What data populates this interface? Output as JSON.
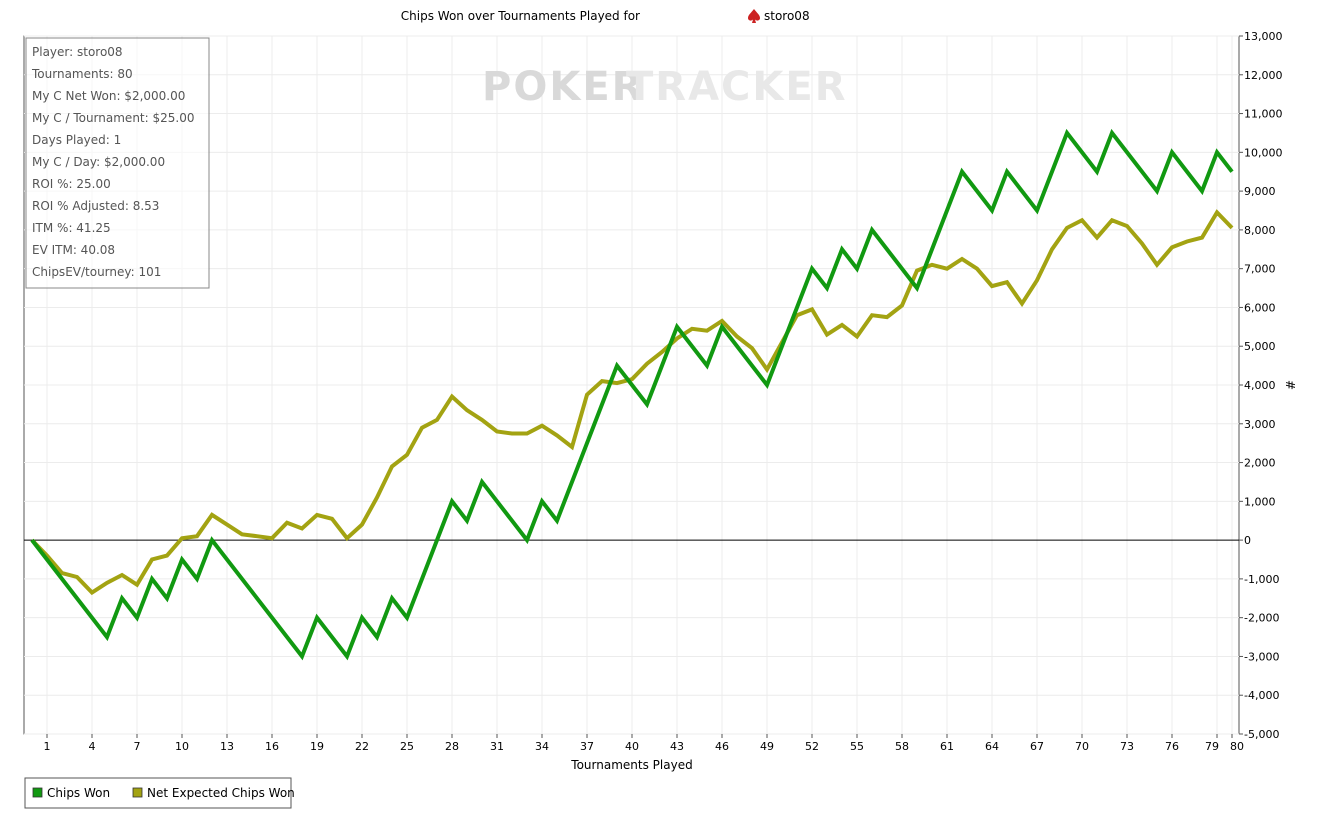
{
  "title": "Chips Won over Tournaments Played for",
  "player_name": "storo08",
  "player_icon": "spade-icon",
  "watermark": {
    "left": "POKER",
    "right": "TRACKER",
    "left_color": "#d9d9d9",
    "right_color": "#e8e8e8"
  },
  "stats": [
    "Player: storo08",
    "Tournaments: 80",
    "My C Net Won: $2,000.00",
    "My C / Tournament: $25.00",
    "Days Played: 1",
    "My C / Day: $2,000.00",
    "ROI %: 25.00",
    "ROI % Adjusted: 8.53",
    "ITM %: 41.25",
    "EV ITM: 40.08",
    "ChipsEV/tourney: 101"
  ],
  "legend": [
    {
      "label": "Chips Won",
      "color": "#119911"
    },
    {
      "label": "Net Expected Chips Won",
      "color": "#a3a312"
    }
  ],
  "chart_data": {
    "type": "line",
    "xlabel": "Tournaments Played",
    "ylabel": "#",
    "xlim": [
      0,
      80
    ],
    "ylim": [
      -5000,
      13000
    ],
    "x_ticks": [
      1,
      4,
      7,
      10,
      13,
      16,
      19,
      22,
      25,
      28,
      31,
      34,
      37,
      40,
      43,
      46,
      49,
      52,
      55,
      58,
      61,
      64,
      67,
      70,
      73,
      76,
      79,
      80
    ],
    "x_tick_labels": [
      "1",
      "4",
      "7",
      "10",
      "13",
      "16",
      "19",
      "22",
      "25",
      "28",
      "31",
      "34",
      "37",
      "40",
      "43",
      "46",
      "49",
      "52",
      "55",
      "58",
      "61",
      "64",
      "67",
      "70",
      "73",
      "76",
      "79",
      "80"
    ],
    "y_ticks": [
      -5000,
      -4000,
      -3000,
      -2000,
      -1000,
      0,
      1000,
      2000,
      3000,
      4000,
      5000,
      6000,
      7000,
      8000,
      9000,
      10000,
      11000,
      12000,
      13000
    ],
    "y_tick_labels": [
      "-5,000",
      "-4,000",
      "-3,000",
      "-2,000",
      "-1,000",
      "0",
      "1,000",
      "2,000",
      "3,000",
      "4,000",
      "5,000",
      "6,000",
      "7,000",
      "8,000",
      "9,000",
      "10,000",
      "11,000",
      "12,000",
      "13,000"
    ],
    "grid": true,
    "legend_position": "bottom-left",
    "series": [
      {
        "name": "Chips Won",
        "color": "#119911",
        "points": [
          [
            0,
            0
          ],
          [
            5,
            -2500
          ],
          [
            6,
            -1500
          ],
          [
            7,
            -2000
          ],
          [
            8,
            -1000
          ],
          [
            9,
            -1500
          ],
          [
            10,
            -500
          ],
          [
            11,
            -1000
          ],
          [
            12,
            0
          ],
          [
            18,
            -3000
          ],
          [
            19,
            -2000
          ],
          [
            21,
            -3000
          ],
          [
            22,
            -2000
          ],
          [
            23,
            -2500
          ],
          [
            24,
            -1500
          ],
          [
            25,
            -2000
          ],
          [
            28,
            1000
          ],
          [
            29,
            500
          ],
          [
            30,
            1500
          ],
          [
            33,
            0
          ],
          [
            34,
            1000
          ],
          [
            35,
            500
          ],
          [
            39,
            4500
          ],
          [
            41,
            3500
          ],
          [
            43,
            5500
          ],
          [
            45,
            4500
          ],
          [
            46,
            5500
          ],
          [
            49,
            4000
          ],
          [
            52,
            7000
          ],
          [
            53,
            6500
          ],
          [
            54,
            7500
          ],
          [
            55,
            7000
          ],
          [
            56,
            8000
          ],
          [
            59,
            6500
          ],
          [
            62,
            9500
          ],
          [
            64,
            8500
          ],
          [
            65,
            9500
          ],
          [
            67,
            8500
          ],
          [
            69,
            10500
          ],
          [
            71,
            9500
          ],
          [
            72,
            10500
          ],
          [
            75,
            9000
          ],
          [
            76,
            10000
          ],
          [
            78,
            9000
          ],
          [
            79,
            10000
          ],
          [
            80,
            9500
          ]
        ]
      },
      {
        "name": "Net Expected Chips Won",
        "color": "#a3a312",
        "points": [
          [
            0,
            0
          ],
          [
            1,
            -400
          ],
          [
            2,
            -850
          ],
          [
            3,
            -950
          ],
          [
            4,
            -1350
          ],
          [
            5,
            -1100
          ],
          [
            6,
            -900
          ],
          [
            7,
            -1150
          ],
          [
            8,
            -500
          ],
          [
            9,
            -400
          ],
          [
            10,
            50
          ],
          [
            11,
            100
          ],
          [
            12,
            650
          ],
          [
            13,
            400
          ],
          [
            14,
            150
          ],
          [
            15,
            100
          ],
          [
            16,
            50
          ],
          [
            17,
            450
          ],
          [
            18,
            300
          ],
          [
            19,
            650
          ],
          [
            20,
            550
          ],
          [
            21,
            50
          ],
          [
            22,
            400
          ],
          [
            23,
            1100
          ],
          [
            24,
            1900
          ],
          [
            25,
            2200
          ],
          [
            26,
            2900
          ],
          [
            27,
            3100
          ],
          [
            28,
            3700
          ],
          [
            29,
            3350
          ],
          [
            30,
            3100
          ],
          [
            31,
            2800
          ],
          [
            32,
            2750
          ],
          [
            33,
            2750
          ],
          [
            34,
            2950
          ],
          [
            35,
            2700
          ],
          [
            36,
            2400
          ],
          [
            37,
            3750
          ],
          [
            38,
            4100
          ],
          [
            39,
            4050
          ],
          [
            40,
            4150
          ],
          [
            41,
            4550
          ],
          [
            42,
            4850
          ],
          [
            43,
            5200
          ],
          [
            44,
            5450
          ],
          [
            45,
            5400
          ],
          [
            46,
            5650
          ],
          [
            47,
            5250
          ],
          [
            48,
            4950
          ],
          [
            49,
            4400
          ],
          [
            50,
            5100
          ],
          [
            51,
            5800
          ],
          [
            52,
            5950
          ],
          [
            53,
            5300
          ],
          [
            54,
            5550
          ],
          [
            55,
            5250
          ],
          [
            56,
            5800
          ],
          [
            57,
            5750
          ],
          [
            58,
            6050
          ],
          [
            59,
            6950
          ],
          [
            60,
            7100
          ],
          [
            61,
            7000
          ],
          [
            62,
            7250
          ],
          [
            63,
            7000
          ],
          [
            64,
            6550
          ],
          [
            65,
            6650
          ],
          [
            66,
            6100
          ],
          [
            67,
            6700
          ],
          [
            68,
            7500
          ],
          [
            69,
            8050
          ],
          [
            70,
            8250
          ],
          [
            71,
            7800
          ],
          [
            72,
            8250
          ],
          [
            73,
            8100
          ],
          [
            74,
            7650
          ],
          [
            75,
            7100
          ],
          [
            76,
            7550
          ],
          [
            77,
            7700
          ],
          [
            78,
            7800
          ],
          [
            79,
            8450
          ],
          [
            80,
            8050
          ]
        ]
      }
    ]
  }
}
